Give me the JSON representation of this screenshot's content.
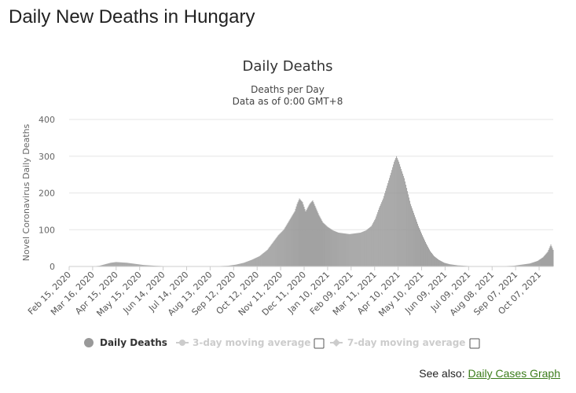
{
  "page": {
    "title": "Daily New Deaths in Hungary",
    "see_also_label": "See also:",
    "see_also_link": "Daily Cases Graph"
  },
  "colors": {
    "bars": "#999999",
    "grid": "#e6e6e6",
    "legend_inactive": "#cccccc",
    "link": "#3c7d1c"
  },
  "chart_data": {
    "type": "bar",
    "title": "Daily Deaths",
    "subtitle_lines": [
      "Deaths per Day",
      "Data as of 0:00 GMT+8"
    ],
    "xlabel": "",
    "ylabel": "Novel Coronavirus Daily Deaths",
    "ylim": [
      0,
      400
    ],
    "y_ticks": [
      "0",
      "100",
      "200",
      "300",
      "400"
    ],
    "x_ticks": [
      "Feb 15, 2020",
      "Mar 16, 2020",
      "Apr 15, 2020",
      "May 15, 2020",
      "Jun 14, 2020",
      "Jul 14, 2020",
      "Aug 13, 2020",
      "Sep 12, 2020",
      "Oct 12, 2020",
      "Nov 11, 2020",
      "Dec 11, 2020",
      "Jan 10, 2021",
      "Feb 09, 2021",
      "Mar 11, 2021",
      "Apr 10, 2021",
      "May 10, 2021",
      "Jun 09, 2021",
      "Jul 09, 2021",
      "Aug 08, 2021",
      "Sep 07, 2021",
      "Oct 07, 2021"
    ],
    "x_start": "2020-02-15",
    "x_end": "2021-10-25",
    "grid": true,
    "series": [
      {
        "name": "Daily Deaths",
        "points": [
          [
            "2020-03-15",
            0
          ],
          [
            "2020-03-25",
            2
          ],
          [
            "2020-04-01",
            6
          ],
          [
            "2020-04-08",
            10
          ],
          [
            "2020-04-15",
            12
          ],
          [
            "2020-04-22",
            11
          ],
          [
            "2020-04-29",
            10
          ],
          [
            "2020-05-06",
            8
          ],
          [
            "2020-05-13",
            6
          ],
          [
            "2020-05-20",
            4
          ],
          [
            "2020-05-27",
            3
          ],
          [
            "2020-06-03",
            2
          ],
          [
            "2020-06-15",
            1
          ],
          [
            "2020-07-01",
            1
          ],
          [
            "2020-07-20",
            0
          ],
          [
            "2020-08-10",
            0
          ],
          [
            "2020-08-25",
            1
          ],
          [
            "2020-09-05",
            2
          ],
          [
            "2020-09-15",
            5
          ],
          [
            "2020-09-25",
            10
          ],
          [
            "2020-10-05",
            18
          ],
          [
            "2020-10-15",
            28
          ],
          [
            "2020-10-25",
            45
          ],
          [
            "2020-11-01",
            65
          ],
          [
            "2020-11-08",
            85
          ],
          [
            "2020-11-15",
            100
          ],
          [
            "2020-11-22",
            125
          ],
          [
            "2020-11-29",
            150
          ],
          [
            "2020-12-02",
            170
          ],
          [
            "2020-12-05",
            185
          ],
          [
            "2020-12-09",
            175
          ],
          [
            "2020-12-13",
            150
          ],
          [
            "2020-12-18",
            170
          ],
          [
            "2020-12-22",
            180
          ],
          [
            "2020-12-26",
            160
          ],
          [
            "2020-12-30",
            140
          ],
          [
            "2021-01-04",
            120
          ],
          [
            "2021-01-10",
            108
          ],
          [
            "2021-01-17",
            98
          ],
          [
            "2021-01-24",
            92
          ],
          [
            "2021-01-31",
            90
          ],
          [
            "2021-02-07",
            88
          ],
          [
            "2021-02-14",
            90
          ],
          [
            "2021-02-21",
            92
          ],
          [
            "2021-02-28",
            98
          ],
          [
            "2021-03-07",
            110
          ],
          [
            "2021-03-12",
            130
          ],
          [
            "2021-03-17",
            160
          ],
          [
            "2021-03-22",
            185
          ],
          [
            "2021-03-27",
            220
          ],
          [
            "2021-04-01",
            255
          ],
          [
            "2021-04-05",
            285
          ],
          [
            "2021-04-08",
            300
          ],
          [
            "2021-04-11",
            285
          ],
          [
            "2021-04-14",
            265
          ],
          [
            "2021-04-18",
            240
          ],
          [
            "2021-04-22",
            205
          ],
          [
            "2021-04-26",
            170
          ],
          [
            "2021-05-01",
            140
          ],
          [
            "2021-05-06",
            110
          ],
          [
            "2021-05-11",
            85
          ],
          [
            "2021-05-16",
            62
          ],
          [
            "2021-05-21",
            42
          ],
          [
            "2021-05-26",
            28
          ],
          [
            "2021-06-01",
            18
          ],
          [
            "2021-06-08",
            10
          ],
          [
            "2021-06-15",
            6
          ],
          [
            "2021-06-25",
            3
          ],
          [
            "2021-07-10",
            1
          ],
          [
            "2021-07-25",
            0
          ],
          [
            "2021-08-10",
            0
          ],
          [
            "2021-08-25",
            1
          ],
          [
            "2021-09-05",
            2
          ],
          [
            "2021-09-15",
            5
          ],
          [
            "2021-09-25",
            8
          ],
          [
            "2021-10-05",
            15
          ],
          [
            "2021-10-12",
            25
          ],
          [
            "2021-10-18",
            40
          ],
          [
            "2021-10-22",
            60
          ],
          [
            "2021-10-25",
            45
          ]
        ]
      }
    ],
    "legend": {
      "position": "bottom",
      "items": [
        {
          "label": "Daily Deaths",
          "active": true
        },
        {
          "label": "3-day moving average",
          "active": false
        },
        {
          "label": "7-day moving average",
          "active": false
        }
      ]
    }
  }
}
